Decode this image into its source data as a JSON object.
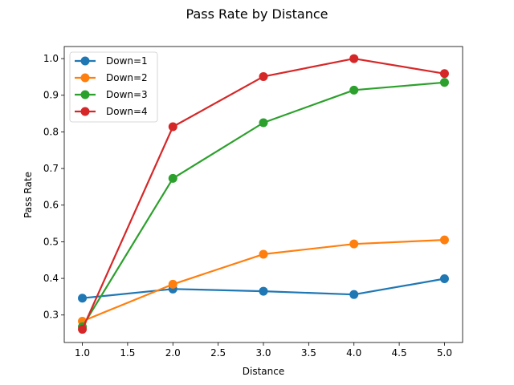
{
  "chart_data": {
    "type": "line",
    "title": "Pass Rate by Distance",
    "xlabel": "Distance",
    "ylabel": "Pass Rate",
    "x": [
      1,
      2,
      3,
      4,
      5
    ],
    "xlim": [
      0.8,
      5.2
    ],
    "ylim": [
      0.225,
      1.033
    ],
    "xticks": [
      1.0,
      1.5,
      2.0,
      2.5,
      3.0,
      3.5,
      4.0,
      4.5,
      5.0
    ],
    "xtick_labels": [
      "1.0",
      "1.5",
      "2.0",
      "2.5",
      "3.0",
      "3.5",
      "4.0",
      "4.5",
      "5.0"
    ],
    "yticks": [
      0.3,
      0.4,
      0.5,
      0.6,
      0.7,
      0.8,
      0.9,
      1.0
    ],
    "ytick_labels": [
      "0.3",
      "0.4",
      "0.5",
      "0.6",
      "0.7",
      "0.8",
      "0.9",
      "1.0"
    ],
    "grid": false,
    "legend_position": "upper-left",
    "series": [
      {
        "name": "Down=1",
        "color": "#1f77b4",
        "values": [
          0.346,
          0.371,
          0.365,
          0.356,
          0.399
        ]
      },
      {
        "name": "Down=2",
        "color": "#ff7f0e",
        "values": [
          0.283,
          0.384,
          0.466,
          0.494,
          0.505
        ]
      },
      {
        "name": "Down=3",
        "color": "#2ca02c",
        "values": [
          0.268,
          0.673,
          0.825,
          0.914,
          0.935
        ]
      },
      {
        "name": "Down=4",
        "color": "#d62728",
        "values": [
          0.261,
          0.814,
          0.951,
          1.0,
          0.959
        ]
      }
    ]
  }
}
